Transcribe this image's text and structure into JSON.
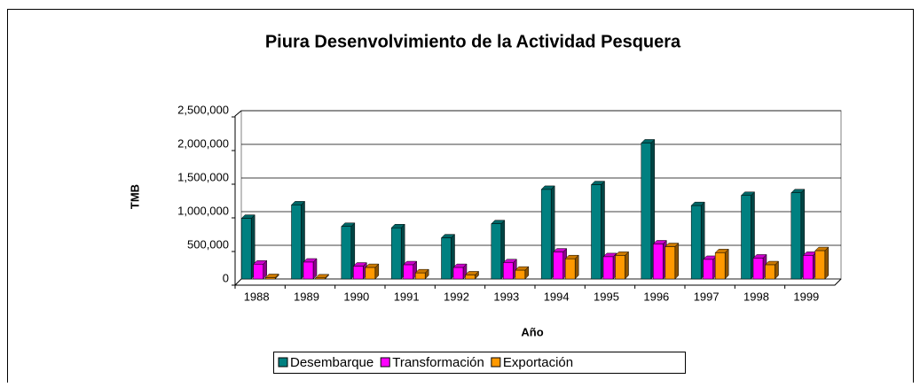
{
  "chart_data": {
    "type": "bar3d",
    "title": "Piura Desenvolvimiento de la Actividad Pesquera",
    "x_label": "Año",
    "y_label": "TMB",
    "categories": [
      "1988",
      "1989",
      "1990",
      "1991",
      "1992",
      "1993",
      "1994",
      "1995",
      "1996",
      "1997",
      "1998",
      "1999"
    ],
    "series": [
      {
        "name": "Desembarque",
        "color": "#008080",
        "values": [
          900000,
          1100000,
          780000,
          760000,
          610000,
          820000,
          1330000,
          1400000,
          2020000,
          1090000,
          1240000,
          1280000
        ]
      },
      {
        "name": "Transformación",
        "color": "#ff00ff",
        "values": [
          220000,
          250000,
          190000,
          210000,
          170000,
          240000,
          400000,
          330000,
          520000,
          290000,
          310000,
          350000
        ]
      },
      {
        "name": "Exportación",
        "color": "#ff9900",
        "values": [
          20000,
          15000,
          170000,
          90000,
          60000,
          130000,
          300000,
          350000,
          480000,
          390000,
          210000,
          420000
        ]
      }
    ],
    "ylim": [
      0,
      2500000
    ],
    "yticks": [
      0,
      {
        "value": 500000,
        "label": "500,000"
      },
      {
        "value": 1000000,
        "label": "1,000,000"
      },
      {
        "value": 1500000,
        "label": "1,500,000"
      },
      {
        "value": 2000000,
        "label": "2,000,000"
      },
      {
        "value": 2500000,
        "label": "2,500,000"
      }
    ],
    "grid": true,
    "legend": "bottom"
  }
}
